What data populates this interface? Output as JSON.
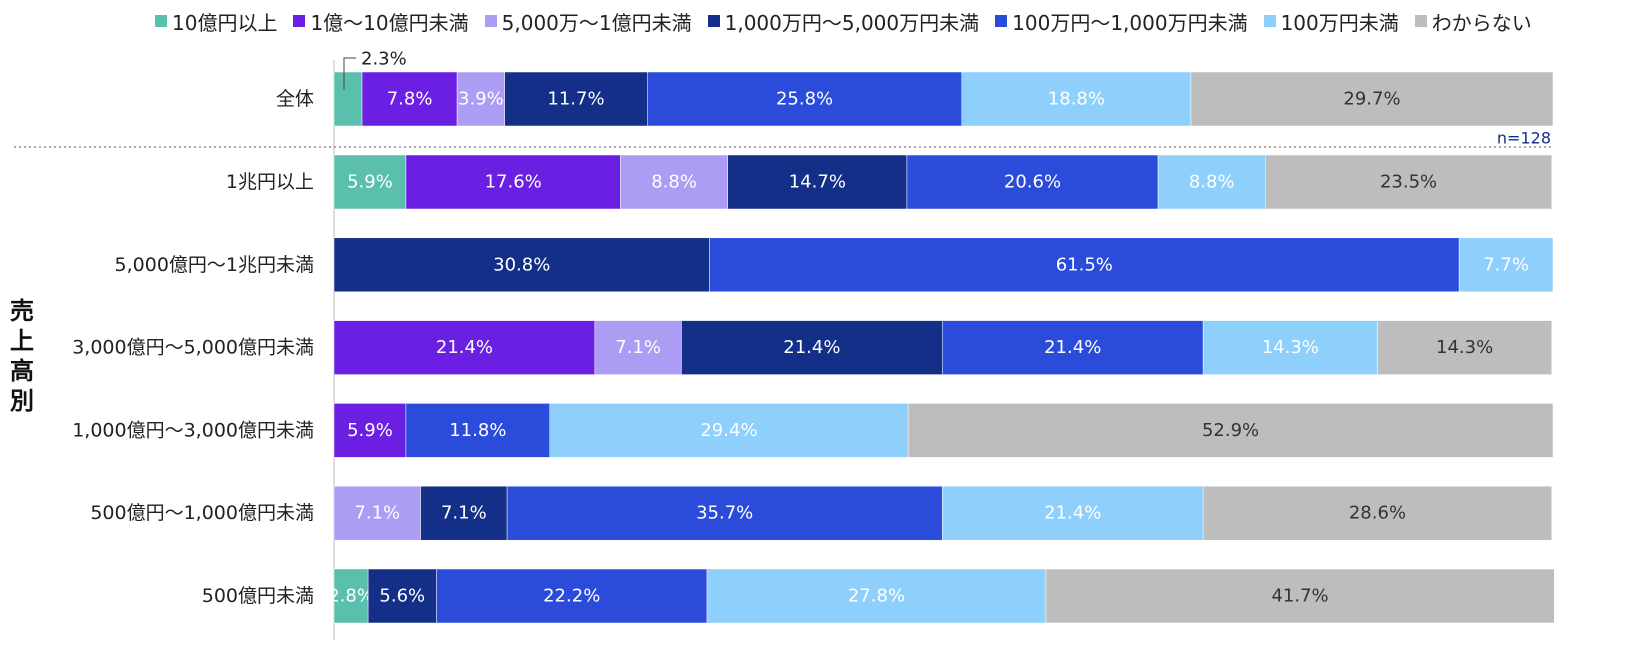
{
  "chart_data": {
    "type": "bar",
    "orientation": "horizontal",
    "stacked": true,
    "percent": true,
    "legend_position": "top",
    "legend": [
      "10億円以上",
      "1億～10億円未満",
      "5,000万～1億円未満",
      "1,000万円～5,000万円未満",
      "100万円～1,000万円未満",
      "100万円未満",
      "わからない"
    ],
    "colors": [
      "#5bbfad",
      "#6a1fe3",
      "#ab9cf4",
      "#142f87",
      "#2b4cdb",
      "#8ecffb",
      "#bdbdbd"
    ],
    "label_colors": [
      "#ffffff",
      "#ffffff",
      "#ffffff",
      "#ffffff",
      "#ffffff",
      "#ffffff",
      "#333333"
    ],
    "group_label": "売上高別",
    "n_label": "n=128",
    "overall": {
      "label": "全体",
      "values": [
        2.3,
        7.8,
        3.9,
        11.7,
        25.8,
        18.8,
        29.7
      ],
      "labels": [
        "2.3%",
        "7.8%",
        "3.9%",
        "11.7%",
        "25.8%",
        "18.8%",
        "29.7%"
      ]
    },
    "rows": [
      {
        "label": "1兆円以上",
        "values": [
          5.9,
          17.6,
          8.8,
          14.7,
          20.6,
          8.8,
          23.5
        ],
        "labels": [
          "5.9%",
          "17.6%",
          "8.8%",
          "14.7%",
          "20.6%",
          "8.8%",
          "23.5%"
        ]
      },
      {
        "label": "5,000億円～1兆円未満",
        "values": [
          0,
          0,
          0,
          30.8,
          61.5,
          7.7,
          0
        ],
        "labels": [
          "",
          "",
          "",
          "30.8%",
          "61.5%",
          "7.7%",
          ""
        ]
      },
      {
        "label": "3,000億円～5,000億円未満",
        "values": [
          0,
          21.4,
          7.1,
          21.4,
          21.4,
          14.3,
          14.3
        ],
        "labels": [
          "",
          "21.4%",
          "7.1%",
          "21.4%",
          "21.4%",
          "14.3%",
          "14.3%"
        ]
      },
      {
        "label": "1,000億円～3,000億円未満",
        "values": [
          0,
          5.9,
          0,
          0,
          11.8,
          29.4,
          52.9
        ],
        "labels": [
          "",
          "5.9%",
          "",
          "",
          "11.8%",
          "29.4%",
          "52.9%"
        ]
      },
      {
        "label": "500億円～1,000億円未満",
        "values": [
          0,
          0,
          7.1,
          7.1,
          35.7,
          21.4,
          28.6
        ],
        "labels": [
          "",
          "",
          "7.1%",
          "7.1%",
          "35.7%",
          "21.4%",
          "28.6%"
        ]
      },
      {
        "label": "500億円未満",
        "values": [
          2.8,
          0,
          0,
          5.6,
          22.2,
          27.8,
          41.7
        ],
        "labels": [
          "2.8%",
          "",
          "",
          "5.6%",
          "22.2%",
          "27.8%",
          "41.7%"
        ]
      }
    ]
  }
}
